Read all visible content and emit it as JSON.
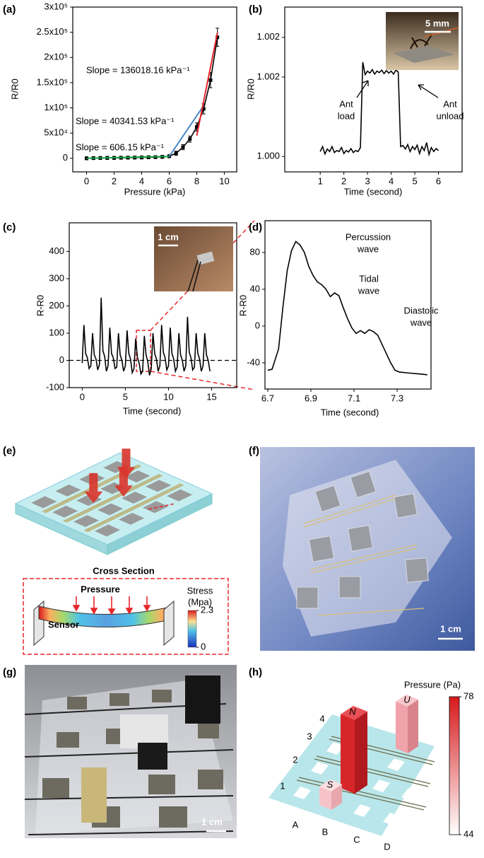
{
  "chart_data": [
    {
      "type": "line",
      "label": "(a)",
      "x_label": "Pressure (kPa)",
      "y_label": "R/R0",
      "xlim": [
        -1,
        10.9
      ],
      "ylim": [
        -27000,
        300000
      ],
      "xticks": [
        0,
        2,
        4,
        6,
        8,
        10
      ],
      "yticks": [
        0,
        {
          "value": 50000,
          "label": "5x10⁴"
        },
        {
          "value": 100000,
          "label": "1x10⁵"
        },
        {
          "value": 150000,
          "label": "1.5x10⁵"
        },
        {
          "value": 200000,
          "label": "2x10⁵"
        },
        {
          "value": 250000,
          "label": "2.5x10⁵"
        },
        {
          "value": 300000,
          "label": "3x10⁵"
        }
      ],
      "series": [
        {
          "color": "#000000",
          "markers": true,
          "x": [
            0,
            0.5,
            1,
            1.5,
            2,
            2.5,
            3,
            3.5,
            4,
            4.5,
            5,
            5.5,
            6,
            6.5,
            7,
            7.5,
            8,
            8.5,
            9,
            9.5
          ],
          "values": [
            0,
            300,
            500,
            700,
            800,
            1000,
            1200,
            1400,
            1700,
            2000,
            2300,
            2800,
            4000,
            10000,
            22000,
            38000,
            62000,
            98000,
            155000,
            240000
          ],
          "errors": [
            3000,
            3000,
            3000,
            3000,
            3000,
            3000,
            3000,
            3000,
            3000,
            3000,
            3000,
            3000,
            3000,
            4000,
            5000,
            6000,
            8000,
            10000,
            15000,
            18000
          ]
        },
        {
          "color": "#1aa64a",
          "x": [
            0,
            6
          ],
          "values": [
            0,
            3637
          ]
        },
        {
          "color": "#4a86c5",
          "x": [
            6,
            8.5
          ],
          "values": [
            3637,
            104490
          ]
        },
        {
          "color": "#e8262a",
          "x": [
            8,
            9.5
          ],
          "values": [
            45000,
            249027
          ]
        }
      ],
      "annotations": [
        {
          "lines": [
            "Slope = 136018.16 kPa⁻¹"
          ],
          "color": "#e8262a"
        },
        {
          "lines": [
            "Slope = 40341.53 kPa⁻¹"
          ],
          "color": "#4a86c5"
        },
        {
          "lines": [
            "Slope = 606.15 kPa⁻¹"
          ],
          "color": "#1aa64a"
        }
      ]
    },
    {
      "type": "line",
      "label": "(b)",
      "x_label": "Time (second)",
      "y_label": "R/R0",
      "xlim": [
        -0.5,
        7
      ],
      "ylim": [
        0.99969,
        1.00301
      ],
      "xticks": [
        1,
        2,
        3,
        4,
        5,
        6
      ],
      "yticks": [
        {
          "value": 1.0,
          "label": "1.000"
        },
        {
          "value": 1.0016,
          "label": "1.002"
        },
        {
          "value": 1.0024,
          "label": "1.002"
        }
      ],
      "series": [
        {
          "color": "#000000",
          "x": [
            1,
            1.1,
            1.2,
            1.3,
            1.4,
            1.5,
            1.6,
            1.7,
            1.8,
            1.9,
            2,
            2.1,
            2.2,
            2.3,
            2.4,
            2.5,
            2.6,
            2.7,
            2.8,
            2.9,
            3,
            3.1,
            3.2,
            3.3,
            3.4,
            3.5,
            3.6,
            3.7,
            3.8,
            3.9,
            4,
            4.1,
            4.2,
            4.3,
            4.4,
            4.5,
            4.6,
            4.7,
            4.8,
            4.9,
            5,
            5.1,
            5.2,
            5.3,
            5.4,
            5.5,
            5.6,
            5.7,
            5.8,
            5.9,
            6
          ],
          "values": [
            1.0001,
            1.0002,
            1.00005,
            1.00015,
            1.0001,
            1.0002,
            1.00008,
            1.00012,
            1.0001,
            1.00018,
            1.00006,
            1.00012,
            1.00009,
            1.00016,
            1.00008,
            1.00012,
            1.0001,
            1.00018,
            1.0019,
            1.00165,
            1.00172,
            1.00168,
            1.00175,
            1.00166,
            1.00172,
            1.00169,
            1.00174,
            1.00167,
            1.00173,
            1.00168,
            1.00172,
            1.00166,
            1.00174,
            1.0017,
            1.0002,
            1.00022,
            1.00015,
            1.00024,
            1.0001,
            1.0002,
            1.00014,
            1.00023,
            1.00006,
            1.0002,
            1.00012,
            1.00028,
            1.00004,
            1.00018,
            1.0001,
            1.00016,
            1.00012
          ]
        }
      ],
      "annotations": [
        {
          "lines": [
            "Ant",
            "load"
          ]
        },
        {
          "lines": [
            "Ant",
            "unload"
          ]
        }
      ],
      "inset": {
        "scale_bar": "5 mm"
      }
    },
    {
      "type": "line",
      "label": "(c)",
      "x_label": "Time (second)",
      "y_label": "R-R0",
      "xlim": [
        -1.5,
        17.9
      ],
      "ylim": [
        -100,
        505
      ],
      "xticks": [
        0,
        5,
        10,
        15
      ],
      "yticks": [
        -100,
        0,
        100,
        200,
        300,
        400
      ],
      "hline": 0,
      "series": [
        {
          "color": "#000000",
          "x": [
            0,
            0.2,
            0.4,
            0.6,
            0.8,
            1,
            1.2,
            1.4,
            1.6,
            1.8,
            2,
            2.2,
            2.4,
            2.6,
            2.8,
            3,
            3.2,
            3.4,
            3.6,
            3.8,
            4,
            4.2,
            4.4,
            4.6,
            4.8,
            5,
            5.2,
            5.4,
            5.6,
            5.8,
            6,
            6.2,
            6.4,
            6.6,
            6.8,
            7,
            7.2,
            7.4,
            7.6,
            7.8,
            8,
            8.2,
            8.4,
            8.6,
            8.8,
            9,
            9.2,
            9.4,
            9.6,
            9.8,
            10,
            10.2,
            10.4,
            10.6,
            10.8,
            11,
            11.2,
            11.4,
            11.6,
            11.8,
            12,
            12.2,
            12.4,
            12.6,
            12.8,
            13,
            13.2,
            13.4,
            13.6,
            13.8,
            14,
            14.2,
            14.4,
            14.6,
            14.8
          ],
          "values": [
            -10,
            130,
            25,
            10,
            -30,
            -20,
            100,
            20,
            5,
            -35,
            -15,
            230,
            35,
            15,
            -40,
            -20,
            120,
            25,
            10,
            -30,
            -25,
            100,
            20,
            0,
            -40,
            -20,
            110,
            25,
            5,
            -45,
            -30,
            80,
            10,
            -10,
            -50,
            -40,
            90,
            20,
            -5,
            -55,
            -30,
            100,
            25,
            5,
            -40,
            -20,
            130,
            30,
            10,
            -35,
            -20,
            120,
            25,
            5,
            -40,
            -25,
            100,
            20,
            0,
            -40,
            -20,
            160,
            30,
            10,
            -35,
            -25,
            100,
            25,
            5,
            -40,
            -20,
            100,
            20,
            0,
            -40
          ]
        }
      ],
      "inset": {
        "scale_bar": "1 cm"
      }
    },
    {
      "type": "line",
      "label": "(d)",
      "x_label": "Time (second)",
      "y_label": "R-R0",
      "xlim": [
        6.687,
        7.457
      ],
      "ylim": [
        -68.5,
        114.6
      ],
      "xticks": [
        6.7,
        6.9,
        7.1,
        7.3
      ],
      "yticks": [
        -40,
        0,
        40,
        80
      ],
      "series": [
        {
          "color": "#000000",
          "x": [
            6.7,
            6.72,
            6.75,
            6.77,
            6.79,
            6.81,
            6.83,
            6.85,
            6.87,
            6.89,
            6.91,
            6.93,
            6.95,
            6.97,
            6.99,
            7.01,
            7.03,
            7.05,
            7.07,
            7.09,
            7.11,
            7.13,
            7.15,
            7.17,
            7.19,
            7.21,
            7.23,
            7.25,
            7.27,
            7.29,
            7.31,
            7.35,
            7.4,
            7.44
          ],
          "values": [
            -48,
            -47,
            -25,
            20,
            60,
            82,
            92,
            88,
            80,
            65,
            55,
            48,
            45,
            40,
            32,
            36,
            33,
            20,
            8,
            -2,
            -8,
            -5,
            -8,
            -4,
            -6,
            -10,
            -20,
            -30,
            -40,
            -48,
            -50,
            -51,
            -52,
            -53
          ]
        }
      ],
      "annotations": [
        {
          "lines": [
            "Percussion",
            "wave"
          ]
        },
        {
          "lines": [
            "Tidal",
            "wave"
          ]
        },
        {
          "lines": [
            "Diastolic",
            "wave"
          ]
        }
      ]
    }
  ],
  "panels": [
    {
      "label": "(e)",
      "title": "Cross Section",
      "arrow_label": "Pressure",
      "part_label": "Sensor",
      "colorbar": {
        "title": [
          "Stress",
          "(Mpa)"
        ],
        "lim": [
          0,
          2.3
        ],
        "ticks": [
          2.3,
          0
        ]
      }
    },
    {
      "label": "(f)",
      "scale_bar": "1 cm"
    },
    {
      "label": "(g)",
      "scale_bar": "1 cm"
    },
    {
      "label": "(h)",
      "columns": [
        "A",
        "B",
        "C",
        "D"
      ],
      "rows": [
        "1",
        "2",
        "3",
        "4"
      ],
      "letters": [
        "N",
        "U",
        "S"
      ],
      "colorbar": {
        "title": "Pressure (Pa)",
        "lim": [
          44,
          78
        ],
        "ticks": [
          78,
          44
        ]
      }
    }
  ]
}
